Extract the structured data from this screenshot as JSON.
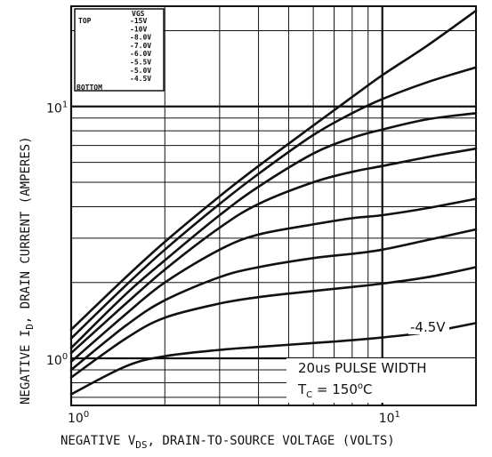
{
  "chart_data": {
    "type": "line",
    "xlabel": {
      "prefix": "NEGATIVE V",
      "sub": "DS",
      "suffix": ", DRAIN-TO-SOURCE VOLTAGE (VOLTS)"
    },
    "ylabel": {
      "prefix": "NEGATIVE I",
      "sub": "D",
      "suffix": ", DRAIN CURRENT (AMPERES)"
    },
    "x_scale": "log",
    "y_scale": "log",
    "xlim": [
      1,
      20
    ],
    "ylim": [
      0.65,
      25
    ],
    "grid": true,
    "x_ticks": [
      {
        "value": 1,
        "base": "10",
        "exp": "0"
      },
      {
        "value": 10,
        "base": "10",
        "exp": "1"
      }
    ],
    "y_ticks": [
      {
        "value": 1,
        "base": "10",
        "exp": "0"
      },
      {
        "value": 10,
        "base": "10",
        "exp": "1"
      }
    ],
    "legend": {
      "header": "VGS",
      "top_label": "TOP",
      "bottom_label": "BOTTOM",
      "entries": [
        "-15V",
        "-10V",
        "-8.0V",
        "-7.0V",
        "-6.0V",
        "-5.5V",
        "-5.0V",
        "-4.5V"
      ],
      "placement": "top-left"
    },
    "annotations": {
      "curve_label": "-4.5V",
      "pulse": "20us PULSE WIDTH",
      "temp_prefix": "T",
      "temp_sub": "C",
      "temp_eq": " = 150",
      "temp_deg": "o",
      "temp_unit": "C"
    },
    "series": [
      {
        "x": [
          1,
          1.5,
          2,
          3,
          4,
          6,
          8,
          10,
          14,
          20
        ],
        "y": [
          1.3,
          2.1,
          2.9,
          4.4,
          5.8,
          8.4,
          10.9,
          13.3,
          17.5,
          24
        ]
      },
      {
        "x": [
          1,
          1.5,
          2,
          3,
          4,
          6,
          8,
          10,
          14,
          20
        ],
        "y": [
          1.2,
          1.95,
          2.7,
          4.1,
          5.4,
          7.7,
          9.4,
          10.7,
          12.5,
          14.3
        ]
      },
      {
        "x": [
          1,
          1.5,
          2,
          3,
          4,
          6,
          8,
          10,
          14,
          20
        ],
        "y": [
          1.1,
          1.8,
          2.45,
          3.7,
          4.8,
          6.5,
          7.5,
          8.1,
          8.9,
          9.4
        ]
      },
      {
        "x": [
          1,
          1.5,
          2,
          3,
          4,
          6,
          8,
          10,
          14,
          20
        ],
        "y": [
          1.05,
          1.65,
          2.25,
          3.3,
          4.1,
          5.0,
          5.5,
          5.8,
          6.3,
          6.8
        ]
      },
      {
        "x": [
          1,
          1.5,
          2,
          3,
          4,
          6,
          8,
          10,
          14,
          20
        ],
        "y": [
          0.97,
          1.5,
          2.0,
          2.7,
          3.1,
          3.4,
          3.6,
          3.7,
          3.95,
          4.3
        ]
      },
      {
        "x": [
          1,
          1.5,
          2,
          3,
          4,
          6,
          8,
          10,
          14,
          20
        ],
        "y": [
          0.9,
          1.35,
          1.7,
          2.1,
          2.3,
          2.5,
          2.6,
          2.7,
          2.95,
          3.25
        ]
      },
      {
        "x": [
          1,
          1.5,
          2,
          3,
          4,
          6,
          8,
          10,
          14,
          20
        ],
        "y": [
          0.84,
          1.2,
          1.45,
          1.65,
          1.75,
          1.85,
          1.92,
          1.98,
          2.1,
          2.3
        ]
      },
      {
        "x": [
          1,
          1.5,
          2,
          3,
          4,
          6,
          8,
          10,
          14,
          20
        ],
        "y": [
          0.72,
          0.93,
          1.02,
          1.08,
          1.11,
          1.15,
          1.18,
          1.21,
          1.27,
          1.38
        ]
      }
    ]
  }
}
